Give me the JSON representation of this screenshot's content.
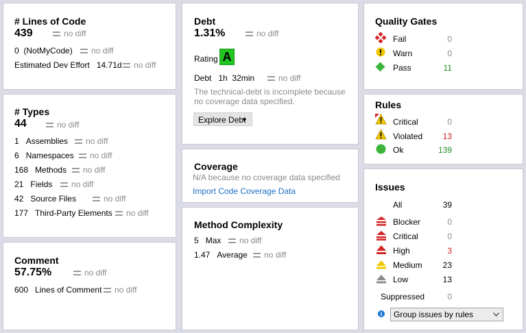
{
  "loc": {
    "title": "# Lines of Code",
    "value": "439",
    "diff": "no diff",
    "notmycode_value": "0",
    "notmycode_label": "(NotMyCode)",
    "effort_label": "Estimated Dev Effort",
    "effort_value": "14.71d"
  },
  "types": {
    "title": "# Types",
    "value": "44",
    "diff": "no diff",
    "rows": [
      {
        "value": "1",
        "label": "Assemblies"
      },
      {
        "value": "6",
        "label": "Namespaces"
      },
      {
        "value": "168",
        "label": "Methods"
      },
      {
        "value": "21",
        "label": "Fields"
      },
      {
        "value": "42",
        "label": "Source Files"
      },
      {
        "value": "177",
        "label": "Third-Party Elements"
      }
    ]
  },
  "comment": {
    "title": "Comment",
    "value": "57.75%",
    "diff": "no diff",
    "lines_value": "600",
    "lines_label": "Lines of Comment"
  },
  "debt": {
    "title": "Debt",
    "value": "1.31%",
    "diff": "no diff",
    "rating_label": "Rating",
    "rating_value": "A",
    "debt_label": "Debt",
    "debt_h": "1h",
    "debt_min": "32min",
    "note": "The technical-debt is incomplete because no coverage data specified.",
    "explore_label": "Explore Debt"
  },
  "coverage": {
    "title": "Coverage",
    "note": "N/A because no coverage data specified",
    "import_link": "Import Code Coverage Data"
  },
  "complexity": {
    "title": "Method Complexity",
    "diff": "no diff",
    "max_value": "5",
    "max_label": "Max",
    "avg_value": "1.47",
    "avg_label": "Average"
  },
  "gates": {
    "title": "Quality Gates",
    "rows": [
      {
        "label": "Fail",
        "count": "0"
      },
      {
        "label": "Warn",
        "count": "0"
      },
      {
        "label": "Pass",
        "count": "11"
      }
    ]
  },
  "rules": {
    "title": "Rules",
    "rows": [
      {
        "label": "Critical",
        "count": "0"
      },
      {
        "label": "Violated",
        "count": "13"
      },
      {
        "label": "Ok",
        "count": "139"
      }
    ]
  },
  "issues": {
    "title": "Issues",
    "all_label": "All",
    "all_count": "39",
    "rows": [
      {
        "label": "Blocker",
        "count": "0"
      },
      {
        "label": "Critical",
        "count": "0"
      },
      {
        "label": "High",
        "count": "3"
      },
      {
        "label": "Medium",
        "count": "23"
      },
      {
        "label": "Low",
        "count": "13"
      }
    ],
    "suppressed_label": "Suppressed",
    "suppressed_count": "0",
    "group_select": "Group issues by rules"
  },
  "colors": {
    "fail": "#d42424",
    "warn": "#f0c800",
    "pass": "#3cb43c",
    "ok": "#3cb43c",
    "rating": "#22c422",
    "link": "#1a6fc4",
    "red_count": "#d21a1a",
    "green_count": "#1e8a1e"
  }
}
